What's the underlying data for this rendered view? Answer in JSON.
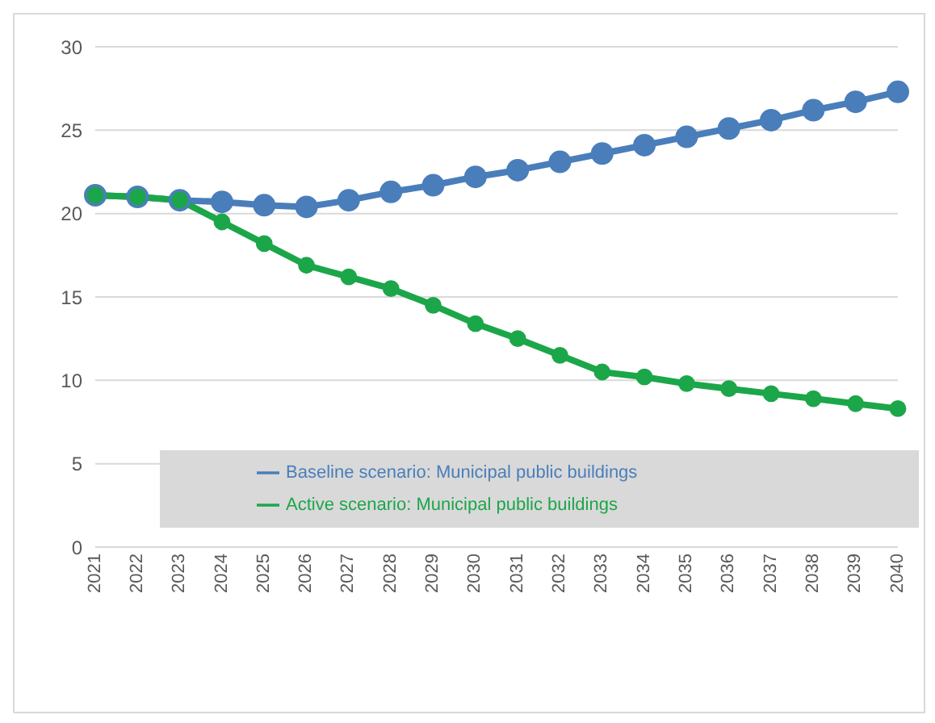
{
  "chart_data": {
    "type": "line",
    "categories": [
      "2021",
      "2022",
      "2023",
      "2024",
      "2025",
      "2026",
      "2027",
      "2028",
      "2029",
      "2030",
      "2031",
      "2032",
      "2033",
      "2034",
      "2035",
      "2036",
      "2037",
      "2038",
      "2039",
      "2040"
    ],
    "series": [
      {
        "name": "Baseline scenario: Municipal public buildings",
        "color": "#4a7ebb",
        "values": [
          21.1,
          21.0,
          20.8,
          20.7,
          20.5,
          20.4,
          20.8,
          21.3,
          21.7,
          22.2,
          22.6,
          23.1,
          23.6,
          24.1,
          24.6,
          25.1,
          25.6,
          26.2,
          26.7,
          27.3
        ]
      },
      {
        "name": "Active scenario: Municipal public buildings",
        "color": "#1ca64a",
        "values": [
          21.1,
          21.0,
          20.8,
          19.5,
          18.2,
          16.9,
          16.2,
          15.5,
          14.5,
          13.4,
          12.5,
          11.5,
          10.5,
          10.2,
          9.8,
          9.5,
          9.2,
          8.9,
          8.6,
          8.3
        ]
      }
    ],
    "ylim": [
      0,
      30
    ],
    "yticks": [
      0,
      5,
      10,
      15,
      20,
      25,
      30
    ],
    "grid": "y",
    "legend": "bottom",
    "marker": "circle",
    "line_style": "solid"
  }
}
